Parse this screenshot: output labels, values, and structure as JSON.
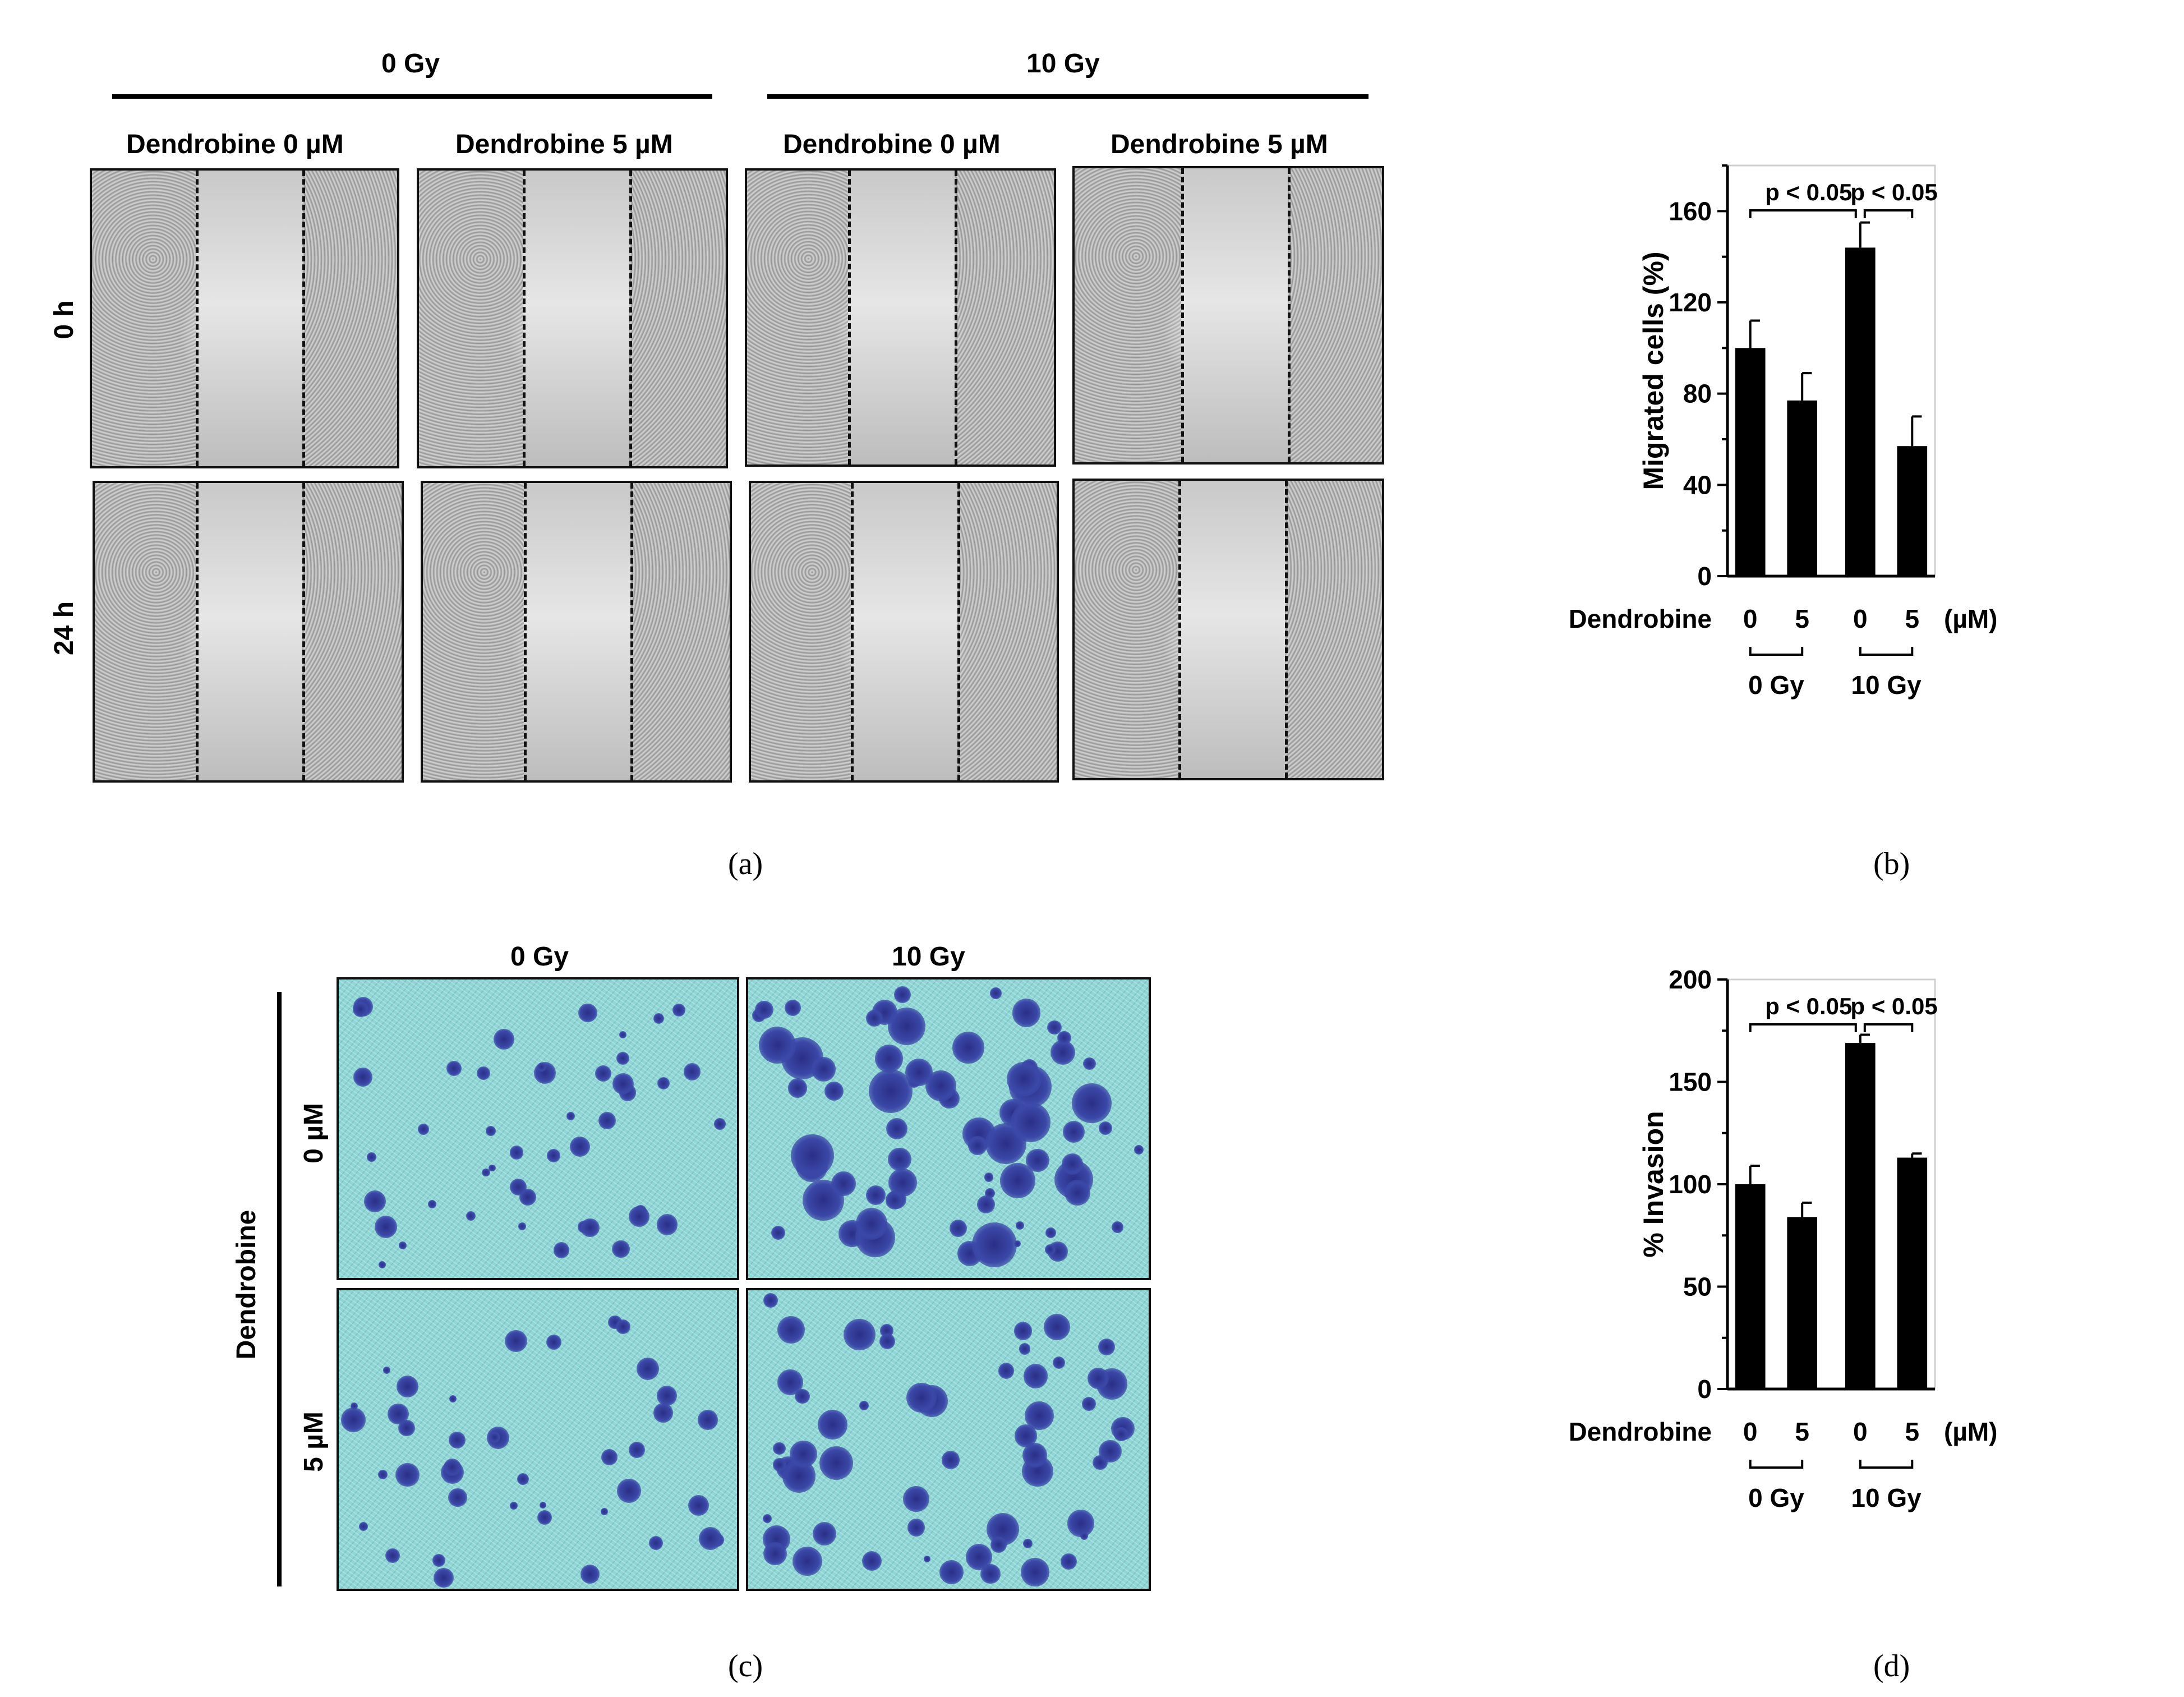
{
  "panel_a": {
    "group_labels": [
      "0 Gy",
      "10 Gy"
    ],
    "column_labels": [
      "Dendrobine 0 µM",
      "Dendrobine 5 µM",
      "Dendrobine 0 µM",
      "Dendrobine 5 µM"
    ],
    "row_labels": [
      "0 h",
      "24 h"
    ],
    "caption": "(a)"
  },
  "panel_c": {
    "column_labels": [
      "0 Gy",
      "10 Gy"
    ],
    "row_labels": [
      "0 µM",
      "5 µM"
    ],
    "side_label": "Dendrobine",
    "caption": "(c)"
  },
  "chart_data": [
    {
      "id": "b",
      "type": "bar",
      "caption": "(b)",
      "ylabel": "Migrated cells (%)",
      "ylim": [
        0,
        180
      ],
      "yticks": [
        0,
        40,
        80,
        120,
        160
      ],
      "categories": [
        "0",
        "5",
        "0",
        "5"
      ],
      "values": [
        100,
        77,
        144,
        57
      ],
      "errors": [
        12,
        12,
        11,
        13
      ],
      "row_label": "Dendrobine",
      "unit": "(µM)",
      "groups": [
        "0 Gy",
        "10 Gy"
      ],
      "annotations": [
        {
          "text": "p < 0.05",
          "from": 0,
          "to": 2
        },
        {
          "text": "p < 0.05",
          "from": 2,
          "to": 3
        }
      ]
    },
    {
      "id": "d",
      "type": "bar",
      "caption": "(d)",
      "ylabel": "% Invasion",
      "ylim": [
        0,
        200
      ],
      "yticks": [
        0,
        50,
        100,
        150,
        200
      ],
      "categories": [
        "0",
        "5",
        "0",
        "5"
      ],
      "values": [
        100,
        84,
        169,
        113
      ],
      "errors": [
        9,
        7,
        4,
        2
      ],
      "row_label": "Dendrobine",
      "unit": "(µM)",
      "groups": [
        "0 Gy",
        "10 Gy"
      ],
      "annotations": [
        {
          "text": "p < 0.05",
          "from": 0,
          "to": 2
        },
        {
          "text": "p < 0.05",
          "from": 2,
          "to": 3
        }
      ]
    }
  ]
}
